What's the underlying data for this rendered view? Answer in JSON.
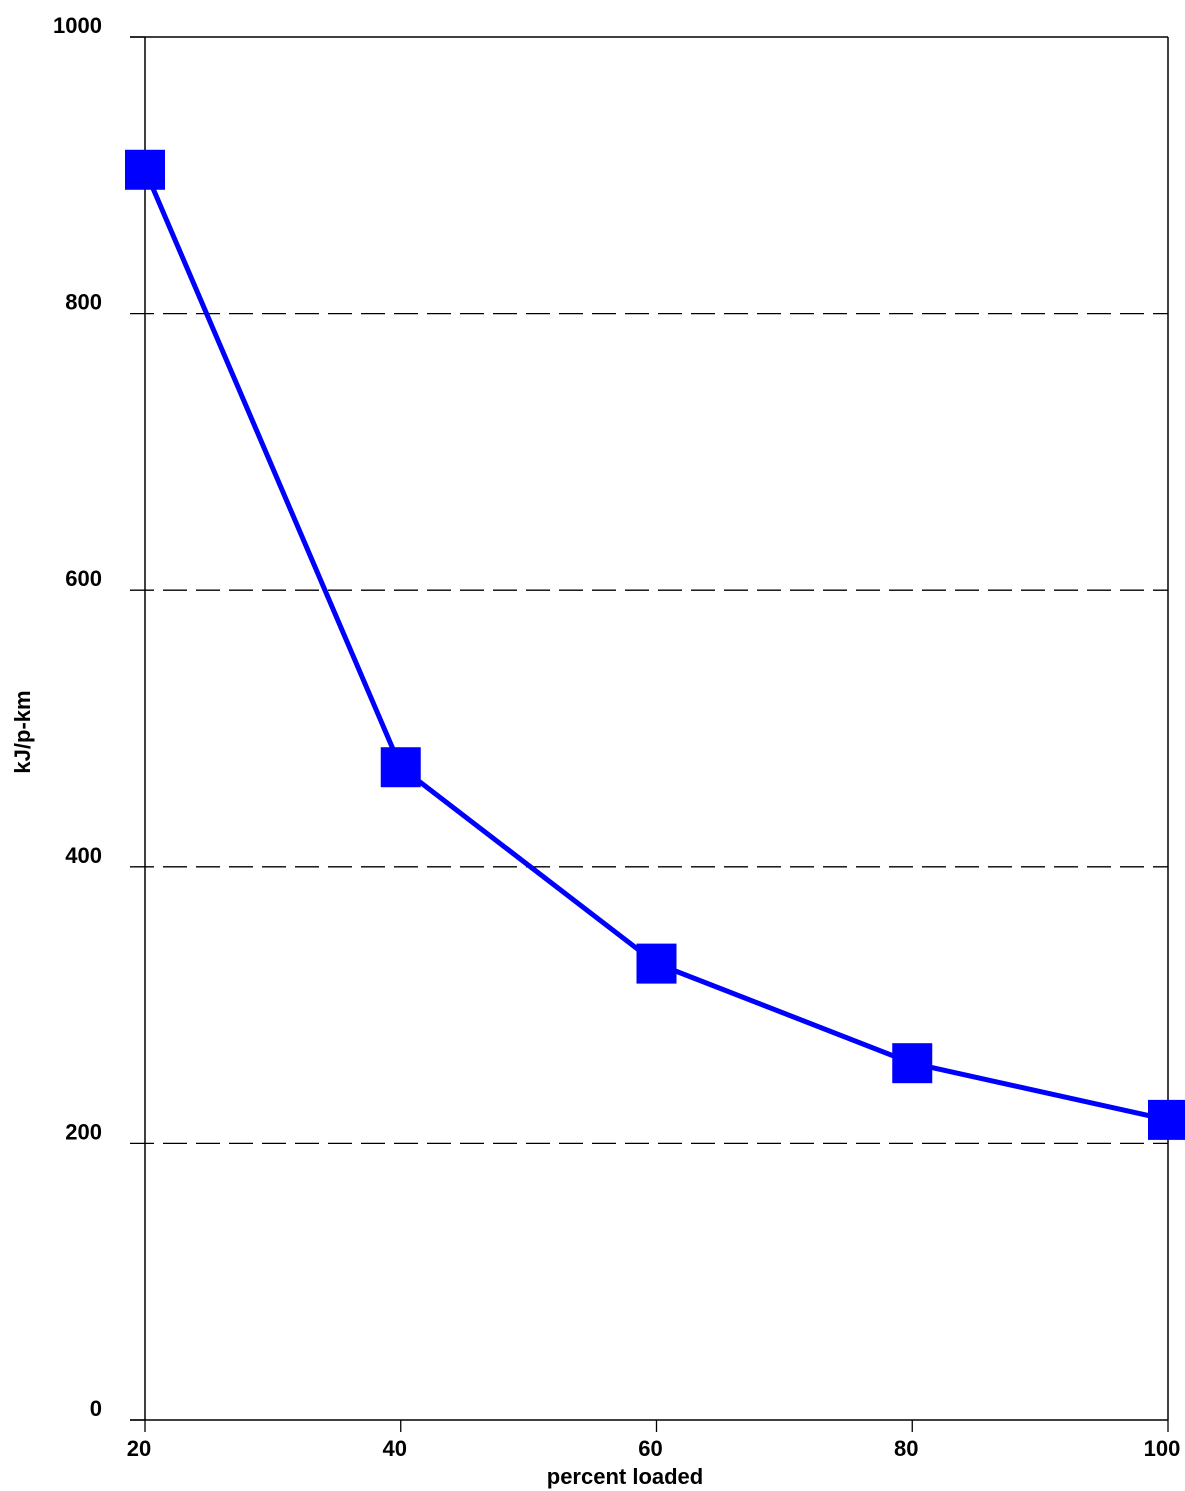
{
  "chart_data": {
    "type": "line",
    "title": "",
    "xlabel": "percent loaded",
    "ylabel": "kJ/p-km",
    "x": [
      20,
      40,
      60,
      80,
      100
    ],
    "xticks": [
      "20",
      "40",
      "60",
      "80",
      "100"
    ],
    "yticks": [
      "0",
      "200",
      "400",
      "600",
      "800",
      "1000"
    ],
    "xlim": [
      20,
      100
    ],
    "ylim": [
      0,
      1000
    ],
    "grid": "dashed horizontal at 200, 400, 600, 800",
    "legend": "none",
    "series": [
      {
        "values": [
          904,
          472,
          330,
          258,
          217
        ],
        "color": "#0000ff",
        "marker": "square"
      }
    ]
  }
}
